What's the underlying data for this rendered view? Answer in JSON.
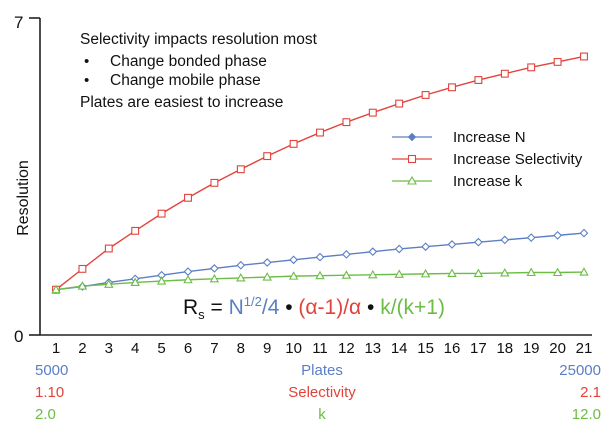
{
  "colors": {
    "blue": "#5b7fc4",
    "red": "#e2433b",
    "green": "#6cbd45",
    "axis": "#222222",
    "text": "#111111"
  },
  "chart_data": {
    "type": "line",
    "ylabel": "Resolution",
    "ylim": [
      0,
      7
    ],
    "yticks": [
      "0",
      "7"
    ],
    "x": [
      1,
      2,
      3,
      4,
      5,
      6,
      7,
      8,
      9,
      10,
      11,
      12,
      13,
      14,
      15,
      16,
      17,
      18,
      19,
      20,
      21
    ],
    "series": [
      {
        "name": "Increase N",
        "color": "#5b7fc4",
        "marker": "diamond",
        "values": [
          1.0,
          1.07,
          1.16,
          1.24,
          1.32,
          1.4,
          1.47,
          1.54,
          1.6,
          1.66,
          1.72,
          1.78,
          1.84,
          1.9,
          1.95,
          2.0,
          2.05,
          2.1,
          2.15,
          2.2,
          2.25
        ]
      },
      {
        "name": "Increase Selectivity",
        "color": "#e2433b",
        "marker": "square",
        "values": [
          1.0,
          1.46,
          1.91,
          2.3,
          2.68,
          3.03,
          3.36,
          3.66,
          3.95,
          4.22,
          4.47,
          4.7,
          4.91,
          5.11,
          5.3,
          5.47,
          5.63,
          5.77,
          5.91,
          6.03,
          6.15
        ]
      },
      {
        "name": "Increase k",
        "color": "#6cbd45",
        "marker": "triangle",
        "values": [
          1.0,
          1.08,
          1.12,
          1.16,
          1.19,
          1.22,
          1.24,
          1.26,
          1.28,
          1.3,
          1.31,
          1.32,
          1.33,
          1.34,
          1.35,
          1.36,
          1.36,
          1.37,
          1.38,
          1.38,
          1.39
        ]
      }
    ],
    "legend_position": "right"
  },
  "annotation": {
    "lines": [
      {
        "text": "Selectivity impacts resolution most",
        "bullet": false
      },
      {
        "text": "Change bonded phase",
        "bullet": true
      },
      {
        "text": "Change mobile phase",
        "bullet": true
      },
      {
        "text": "Plates are easiest to increase",
        "bullet": false
      }
    ]
  },
  "equation": {
    "rs": "R",
    "rs_sub": "s",
    "eq": " = ",
    "n_part": "N",
    "n_sup": "1/2",
    "n_tail": "/4",
    "dot": " • ",
    "alpha_part": "(α-1)/α",
    "k_part": "k/(k+1)"
  },
  "scale_rows": [
    {
      "left": "5000",
      "center": "Plates",
      "right": "25000",
      "color": "#5b7fc4"
    },
    {
      "left": "1.10",
      "center": "Selectivity",
      "right": "2.1",
      "color": "#e2433b"
    },
    {
      "left": "2.0",
      "center": "k",
      "right": "12.0",
      "color": "#6cbd45"
    }
  ]
}
